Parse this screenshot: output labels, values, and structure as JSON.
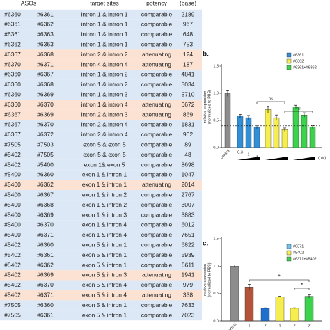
{
  "table": {
    "header": [
      "ASOs",
      "target sites",
      "potency",
      "(base)"
    ],
    "rows": [
      {
        "cells": [
          "#6360",
          "#6361",
          "intron 1 & intron 1",
          "comparable",
          "2189"
        ],
        "color": "#dce8f5"
      },
      {
        "cells": [
          "#6361",
          "#6362",
          "intron 1 & intron 1",
          "comparable",
          "967"
        ],
        "color": "#dce8f5"
      },
      {
        "cells": [
          "#6361",
          "#6363",
          "intron 1 & intron 1",
          "comparable",
          "648"
        ],
        "color": "#dce8f5"
      },
      {
        "cells": [
          "#6362",
          "#6363",
          "intron 1 & intron 1",
          "comparable",
          "753"
        ],
        "color": "#dce8f5"
      },
      {
        "cells": [
          "#6367",
          "#6368",
          "intron 2 & intron 2",
          "attenuating",
          "124"
        ],
        "color": "#fbe2d2"
      },
      {
        "cells": [
          "#6370",
          "#6371",
          "intron 4 & intron 4",
          "attenuating",
          "187"
        ],
        "color": "#fbe2d2"
      },
      {
        "cells": [
          "#6360",
          "#6367",
          "intron 1 & intron 2",
          "comparable",
          "4841"
        ],
        "color": "#dce8f5"
      },
      {
        "cells": [
          "#6360",
          "#6368",
          "intron 1 & intron 2",
          "comparable",
          "5034"
        ],
        "color": "#dce8f5"
      },
      {
        "cells": [
          "#6360",
          "#6369",
          "intron 1 & intron 3",
          "comparable",
          "5710"
        ],
        "color": "#dce8f5"
      },
      {
        "cells": [
          "#6360",
          "#6370",
          "intron 1 & intron 4",
          "attenuating",
          "6672"
        ],
        "color": "#fbe2d2"
      },
      {
        "cells": [
          "#6367",
          "#6369",
          "intron 2 & intron 3",
          "attenuating",
          "869"
        ],
        "color": "#fbe2d2"
      },
      {
        "cells": [
          "#6367",
          "#6370",
          "intron 2 & intron 4",
          "comparable",
          "1831"
        ],
        "color": "#dce8f5"
      },
      {
        "cells": [
          "#6367",
          "#6372",
          "intron 2 & intron 4",
          "comparable",
          "962"
        ],
        "color": "#dce8f5"
      },
      {
        "cells": [
          "#7505",
          "#7503",
          "exon 5 & exon 5",
          "comparable",
          "89"
        ],
        "color": "#dce8f5"
      },
      {
        "cells": [
          "#5402",
          "#7505",
          "exon 5 & exon 5",
          "comparable",
          "48"
        ],
        "color": "#dce8f5"
      },
      {
        "cells": [
          "#5402",
          "#5400",
          "exon 1& exon 5",
          "comparable",
          "8698"
        ],
        "color": "#dce8f5"
      },
      {
        "cells": [
          "#5400",
          "#6360",
          "exon 1 & intron 1",
          "comparable",
          "1047"
        ],
        "color": "#dce8f5"
      },
      {
        "cells": [
          "#5400",
          "#6362",
          "exon 1 & intron 1",
          "attenuating",
          "2014"
        ],
        "color": "#fbe2d2"
      },
      {
        "cells": [
          "#5400",
          "#6367",
          "exon 1 & intron 2",
          "comparable",
          "2767"
        ],
        "color": "#dce8f5"
      },
      {
        "cells": [
          "#5400",
          "#6368",
          "exon 1 & intron 2",
          "comparable",
          "3007"
        ],
        "color": "#dce8f5"
      },
      {
        "cells": [
          "#5400",
          "#6369",
          "exon 1 & intron 3",
          "comparable",
          "3883"
        ],
        "color": "#dce8f5"
      },
      {
        "cells": [
          "#5400",
          "#6370",
          "exon 1 & intron 4",
          "comparable",
          "6012"
        ],
        "color": "#dce8f5"
      },
      {
        "cells": [
          "#5400",
          "#6371",
          "exon 1 & intron 4",
          "comparable",
          "7651"
        ],
        "color": "#dce8f5"
      },
      {
        "cells": [
          "#5402",
          "#6360",
          "exon 5 & intron 1",
          "comparable",
          "6822"
        ],
        "color": "#dce8f5"
      },
      {
        "cells": [
          "#5402",
          "#6361",
          "exon 5 & intron 1",
          "comparable",
          "5939"
        ],
        "color": "#dce8f5"
      },
      {
        "cells": [
          "#5402",
          "#6362",
          "exon 5 & intron 1",
          "comparable",
          "5611"
        ],
        "color": "#dce8f5"
      },
      {
        "cells": [
          "#5402",
          "#6369",
          "exon 5 & intron 3",
          "attenuating",
          "1941"
        ],
        "color": "#fbe2d2"
      },
      {
        "cells": [
          "#5402",
          "#6370",
          "exon 5 & intron 4",
          "comparable",
          "979"
        ],
        "color": "#dce8f5"
      },
      {
        "cells": [
          "#5402",
          "#6371",
          "exon 5 & intron 4",
          "attenuating",
          "338"
        ],
        "color": "#fbe2d2"
      },
      {
        "cells": [
          "#7505",
          "#6360",
          "exon 5 & intron 1",
          "comparable",
          "7633"
        ],
        "color": "#dce8f5"
      },
      {
        "cells": [
          "#7505",
          "#6361",
          "exon 5 & intron 1",
          "comparable",
          "7023"
        ],
        "color": "#dce8f5"
      }
    ]
  },
  "chart_data": [
    {
      "type": "bar",
      "label": "b.",
      "ylabel": "relative expression\n(normalized to PBS)",
      "categories": [
        "control",
        "0.3",
        "1",
        "3",
        null,
        null,
        null,
        null,
        null,
        null
      ],
      "values": [
        1.0,
        0.58,
        0.55,
        0.38,
        0.7,
        0.55,
        0.33,
        0.75,
        0.6,
        0.38
      ],
      "errors": [
        0.06,
        0.03,
        0.04,
        0.03,
        0.06,
        0.05,
        0.03,
        0.03,
        0.04,
        0.03
      ],
      "colors": [
        "#8c8c8c",
        "#2f8fd8",
        "#2f8fd8",
        "#2f8fd8",
        "#f6ee4e",
        "#f6ee4e",
        "#f6ee4e",
        "#3bd34c",
        "#3bd34c",
        "#3bd34c"
      ],
      "legend": [
        {
          "name": "#6361",
          "color": "#2f8fd8"
        },
        {
          "name": "#6362",
          "color": "#f6ee4e"
        },
        {
          "name": "#6361+#6362",
          "color": "#3bd34c"
        }
      ],
      "unit": "(nM)",
      "reference": 0.4,
      "annotations": [
        "ns",
        "ns"
      ],
      "ylim": [
        0,
        1.5
      ],
      "yticks": [
        {
          "value": 0,
          "label": "0.0"
        },
        {
          "value": 0.5,
          "label": "0.5"
        },
        {
          "value": 1,
          "label": "1.0"
        },
        {
          "value": 1.5,
          "label": "1.5"
        }
      ]
    },
    {
      "type": "bar",
      "label": "c.",
      "ylabel": "relative expression\n(normalized to PBS)",
      "categories": [
        "control",
        "1",
        "2",
        "1",
        "2",
        "2"
      ],
      "values": [
        1.0,
        0.62,
        0.23,
        0.44,
        0.23,
        0.45
      ],
      "errors": [
        0.02,
        0.05,
        0.01,
        0.01,
        0.01,
        0.03
      ],
      "colors": [
        "#8c8c8c",
        "#b5533a",
        "#1f6fd0",
        "#f6ee4e",
        "#f6ee4e",
        "#3bd34c"
      ],
      "legend": [
        {
          "name": "#6371",
          "color": "#6fc3f0"
        },
        {
          "name": "#5402",
          "color": "#f6ee4e"
        },
        {
          "name": "#6371+#5402",
          "color": "#3bd34c"
        }
      ],
      "annotations": [
        "*",
        "*"
      ],
      "ylim": [
        0,
        1.5
      ],
      "yticks": [
        {
          "value": 0,
          "label": "0.0"
        },
        {
          "value": 0.5,
          "label": "0.5"
        },
        {
          "value": 1,
          "label": "1.0"
        },
        {
          "value": 1.5,
          "label": "1.5"
        }
      ]
    }
  ]
}
